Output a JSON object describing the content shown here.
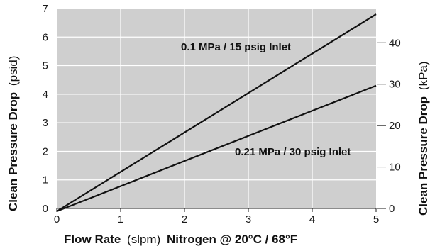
{
  "chart_data": {
    "type": "line",
    "xlabel": {
      "bold": "Flow Rate",
      "unit": "(slpm)",
      "rest": "Nitrogen @ 20°C / 68°F"
    },
    "ylabel_left": {
      "bold": "Clean Pressure Drop",
      "unit": "(psid)"
    },
    "ylabel_right": {
      "bold": "Clean Pressure Drop",
      "unit": "(kPa)"
    },
    "xlim": [
      0,
      5
    ],
    "ylim": [
      0,
      7
    ],
    "x_ticks": [
      "0",
      "1",
      "2",
      "3",
      "4",
      "5"
    ],
    "y_ticks": [
      "0",
      "1",
      "2",
      "3",
      "4",
      "5",
      "6",
      "7"
    ],
    "y2_ticks": [
      {
        "value": 0,
        "label": "0"
      },
      {
        "value": 10,
        "label": "10"
      },
      {
        "value": 20,
        "label": "20"
      },
      {
        "value": 30,
        "label": "30"
      },
      {
        "value": 40,
        "label": "40"
      }
    ],
    "y2_unit_factor_kpa_per_psi": 6.895,
    "grid": true,
    "series": [
      {
        "name": "0.1 MPa / 15 psig Inlet",
        "x": [
          0,
          5
        ],
        "y": [
          -0.1,
          6.8
        ]
      },
      {
        "name": "0.21 MPa / 30 psig Inlet",
        "x": [
          0,
          5
        ],
        "y": [
          -0.1,
          4.3
        ]
      }
    ],
    "colors": {
      "plot_bg": "#cfcfcf",
      "grid": "#ffffff",
      "line": "#111111"
    }
  }
}
